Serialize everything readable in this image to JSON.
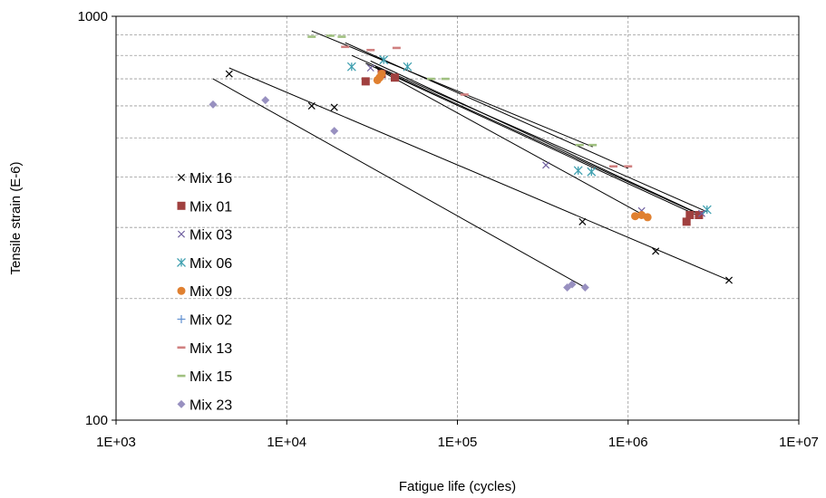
{
  "chart_data": {
    "type": "scatter",
    "xscale": "log",
    "yscale": "log",
    "xlim": [
      1000,
      10000000
    ],
    "ylim": [
      100,
      1000
    ],
    "xlabel": "Fatigue life (cycles)",
    "ylabel": "Tensile strain (E-6)",
    "x_ticks": [
      {
        "value": 1000,
        "label": "1E+03"
      },
      {
        "value": 10000,
        "label": "1E+04"
      },
      {
        "value": 100000,
        "label": "1E+05"
      },
      {
        "value": 1000000,
        "label": "1E+06"
      },
      {
        "value": 10000000,
        "label": "1E+07"
      }
    ],
    "y_ticks": [
      {
        "value": 100,
        "label": "100"
      },
      {
        "value": 1000,
        "label": "1000"
      }
    ],
    "grid": true,
    "legend_position": "left",
    "series": [
      {
        "name": "Mix 16",
        "marker": "x",
        "color": "#000000",
        "points": [
          [
            4600,
            720
          ],
          [
            14000,
            600
          ],
          [
            19000,
            595
          ],
          [
            540000,
            310
          ],
          [
            1450000,
            262
          ],
          [
            3900000,
            222
          ]
        ],
        "trendline": [
          [
            4600,
            745
          ],
          [
            3900000,
            222
          ]
        ]
      },
      {
        "name": "Mix 01",
        "marker": "square",
        "color": "#a0403f",
        "points": [
          [
            29000,
            690
          ],
          [
            36000,
            720
          ],
          [
            43000,
            705
          ],
          [
            2200000,
            310
          ],
          [
            2300000,
            322
          ],
          [
            2600000,
            322
          ]
        ],
        "trendline": [
          [
            29000,
            765
          ],
          [
            2600000,
            320
          ]
        ]
      },
      {
        "name": "Mix 03",
        "marker": "x",
        "color": "#7060a0",
        "points": [
          [
            31000,
            745
          ],
          [
            330000,
            428
          ],
          [
            1200000,
            330
          ],
          [
            2700000,
            325
          ]
        ],
        "trendline": [
          [
            31000,
            775
          ],
          [
            2700000,
            322
          ]
        ]
      },
      {
        "name": "Mix 06",
        "marker": "asterisk",
        "color": "#40a0b0",
        "points": [
          [
            24000,
            750
          ],
          [
            37000,
            780
          ],
          [
            51000,
            750
          ],
          [
            510000,
            415
          ],
          [
            610000,
            412
          ],
          [
            2900000,
            332
          ]
        ],
        "trendline": [
          [
            24000,
            800
          ],
          [
            2900000,
            328
          ]
        ]
      },
      {
        "name": "Mix 09",
        "marker": "circle",
        "color": "#e08030",
        "points": [
          [
            34000,
            695
          ],
          [
            35000,
            705
          ],
          [
            36000,
            720
          ],
          [
            1100000,
            320
          ],
          [
            1200000,
            322
          ],
          [
            1300000,
            318
          ]
        ],
        "trendline": [
          [
            34000,
            740
          ],
          [
            1300000,
            318
          ]
        ]
      },
      {
        "name": "Mix 02",
        "marker": "plus",
        "color": "#6090d0",
        "points": [],
        "trendline": [
          [
            33000,
            750
          ],
          [
            2500000,
            326
          ]
        ]
      },
      {
        "name": "Mix 13",
        "marker": "dash",
        "color": "#d08080",
        "points": [
          [
            22000,
            840
          ],
          [
            31000,
            825
          ],
          [
            44000,
            835
          ],
          [
            110000,
            640
          ],
          [
            820000,
            425
          ],
          [
            1000000,
            425
          ]
        ],
        "trendline": [
          [
            22000,
            860
          ],
          [
            1000000,
            420
          ]
        ]
      },
      {
        "name": "Mix 15",
        "marker": "dash",
        "color": "#a0c080",
        "points": [
          [
            14000,
            890
          ],
          [
            18000,
            895
          ],
          [
            21000,
            890
          ],
          [
            70000,
            700
          ],
          [
            85000,
            700
          ],
          [
            520000,
            480
          ],
          [
            620000,
            480
          ]
        ],
        "trendline": [
          [
            14000,
            920
          ],
          [
            620000,
            475
          ]
        ]
      },
      {
        "name": "Mix 23",
        "marker": "diamond",
        "color": "#9890c0",
        "points": [
          [
            3700,
            605
          ],
          [
            7500,
            620
          ],
          [
            19000,
            520
          ],
          [
            440000,
            213
          ],
          [
            470000,
            217
          ],
          [
            560000,
            213
          ]
        ],
        "trendline": [
          [
            3700,
            700
          ],
          [
            560000,
            213
          ]
        ]
      }
    ]
  }
}
